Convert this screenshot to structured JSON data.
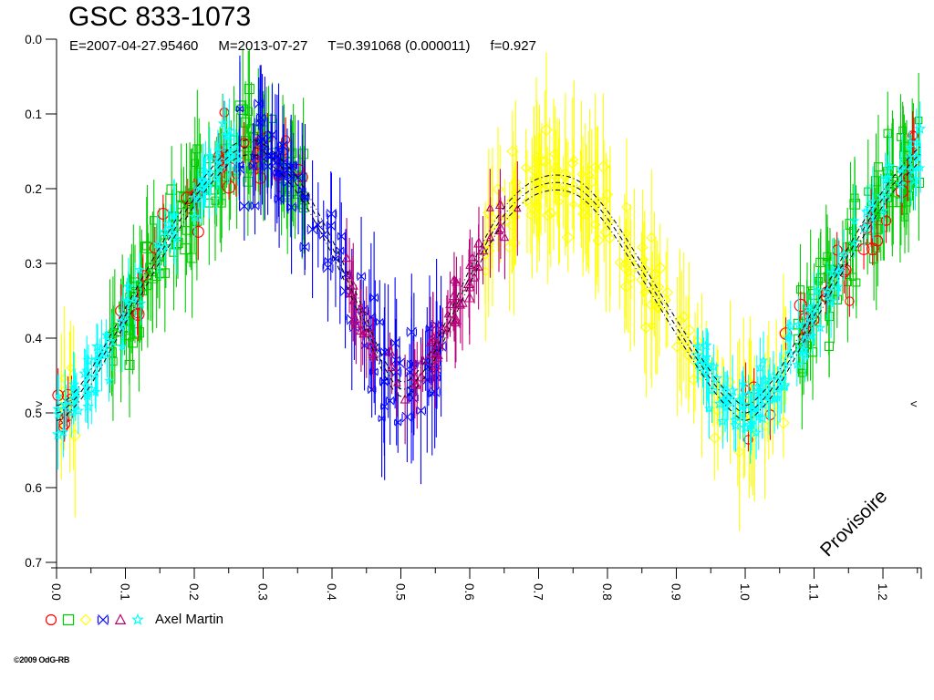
{
  "header": {
    "title": "GSC 833-1073",
    "params": [
      "E=2007-04-27.95460",
      "M=2013-07-27",
      "T=0.391068 (0.000011)",
      "f=0.927"
    ]
  },
  "legend": {
    "label": "Axel Martin",
    "symbols": [
      {
        "marker": "circle",
        "color": "#FF0000"
      },
      {
        "marker": "square",
        "color": "#00CC00"
      },
      {
        "marker": "diamond",
        "color": "#FFFF00"
      },
      {
        "marker": "xbox",
        "color": "#0000FF"
      },
      {
        "marker": "triangle",
        "color": "#B8007A"
      },
      {
        "marker": "star",
        "color": "#00FFFF"
      }
    ]
  },
  "watermark": "Provisoire",
  "copyright": "©2009 OdG-RB",
  "chart_data": {
    "type": "scatter",
    "title": "GSC 833-1073",
    "xlabel": "",
    "ylabel": "",
    "xlim": [
      0,
      1.2556
    ],
    "ylim": [
      0,
      0.7
    ],
    "y_inverted_magnitude_axis": true,
    "grid": false,
    "x_tick_labels": [
      "0.0",
      "0.1",
      "0.2",
      "0.3",
      "0.4",
      "0.5",
      "0.6",
      "0.7",
      "0.8",
      "0.9",
      "1.0",
      "1.1",
      "1.2"
    ],
    "x_minor_step": 0.05,
    "y_tick_labels": [
      "0.0",
      "0.1",
      "0.2",
      "0.3",
      "0.4",
      "0.5",
      "0.6",
      "0.7"
    ],
    "seed": 20090427,
    "level_markers": {
      "mag": 0.488,
      "left_glyph": ">",
      "right_glyph": "<"
    },
    "model_curve": {
      "color": "#000000",
      "style": "dash-dot",
      "offsets": [
        -0.01,
        0,
        0.01
      ],
      "knots": [
        [
          0.0,
          0.5
        ],
        [
          0.025,
          0.483
        ],
        [
          0.05,
          0.452
        ],
        [
          0.1,
          0.37
        ],
        [
          0.15,
          0.288
        ],
        [
          0.2,
          0.213
        ],
        [
          0.25,
          0.157
        ],
        [
          0.275,
          0.145
        ],
        [
          0.3,
          0.15
        ],
        [
          0.35,
          0.196
        ],
        [
          0.4,
          0.278
        ],
        [
          0.44,
          0.36
        ],
        [
          0.47,
          0.428
        ],
        [
          0.5,
          0.468
        ],
        [
          0.53,
          0.448
        ],
        [
          0.56,
          0.398
        ],
        [
          0.6,
          0.318
        ],
        [
          0.64,
          0.248
        ],
        [
          0.68,
          0.207
        ],
        [
          0.72,
          0.192
        ],
        [
          0.76,
          0.201
        ],
        [
          0.8,
          0.24
        ],
        [
          0.85,
          0.31
        ],
        [
          0.9,
          0.385
        ],
        [
          0.95,
          0.455
        ],
        [
          0.975,
          0.483
        ],
        [
          1.0,
          0.5
        ]
      ]
    },
    "series": [
      {
        "name": "green-squares",
        "observer_symbol": "square",
        "marker": "square",
        "color": "#00CC00",
        "size": 9,
        "sigma": 0.03,
        "err": [
          0.035,
          0.085
        ],
        "segments": [
          {
            "from": 0.075,
            "to": 0.2,
            "n": 60
          },
          {
            "from": 0.2,
            "to": 0.36,
            "n": 70
          },
          {
            "from": 1.075,
            "to": 1.256,
            "n": 85
          }
        ]
      },
      {
        "name": "yellow-diamonds",
        "observer_symbol": "diamond",
        "marker": "diamond",
        "color": "#FFFF00",
        "size": 10,
        "sigma": 0.03,
        "err": [
          0.045,
          0.11
        ],
        "segments": [
          {
            "from": 0.62,
            "to": 0.8,
            "n": 80
          },
          {
            "from": 0.8,
            "to": 1.06,
            "n": 70
          },
          {
            "from": 0.0,
            "to": 0.035,
            "n": 8
          }
        ]
      },
      {
        "name": "red-circles",
        "observer_symbol": "circle",
        "marker": "circle",
        "color": "#FF0000",
        "size": 11,
        "sigma": 0.025,
        "err": [
          0.015,
          0.04
        ],
        "segments": [
          {
            "from": 0.0,
            "to": 0.36,
            "n": 40
          },
          {
            "from": 0.95,
            "to": 1.256,
            "n": 28
          }
        ]
      },
      {
        "name": "blue-crosses",
        "observer_symbol": "xbox",
        "marker": "xbox",
        "color": "#0000FF",
        "size": 9,
        "sigma": 0.03,
        "err": [
          0.035,
          0.1
        ],
        "segments": [
          {
            "from": 0.265,
            "to": 0.4,
            "n": 45
          },
          {
            "from": 0.4,
            "to": 0.565,
            "n": 50
          }
        ]
      },
      {
        "name": "magenta-triangles",
        "observer_symbol": "triangle",
        "marker": "triangle",
        "color": "#B8007A",
        "size": 9,
        "sigma": 0.016,
        "err": [
          0.025,
          0.065
        ],
        "segments": [
          {
            "from": 0.42,
            "to": 0.55,
            "n": 30
          },
          {
            "from": 0.55,
            "to": 0.675,
            "n": 35
          }
        ]
      },
      {
        "name": "cyan-stars",
        "observer_symbol": "star",
        "marker": "star",
        "color": "#00FFFF",
        "size": 9,
        "sigma": 0.02,
        "err": [
          0.02,
          0.05
        ],
        "segments": [
          {
            "from": 0.0,
            "to": 0.06,
            "n": 30
          },
          {
            "from": 0.06,
            "to": 0.27,
            "n": 55
          },
          {
            "from": 0.93,
            "to": 1.05,
            "n": 60
          },
          {
            "from": 1.05,
            "to": 1.256,
            "n": 55
          }
        ]
      }
    ]
  }
}
